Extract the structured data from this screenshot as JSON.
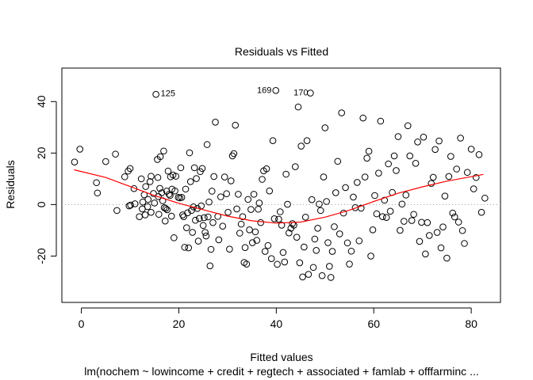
{
  "chart_data": {
    "type": "scatter",
    "title": "Residuals vs Fitted",
    "xlabel": "Fitted values",
    "ylabel": "Residuals",
    "subtitle": "lm(nochem ~ lowincome + credit + regtech + associated + famlab + offfarminc ...",
    "xlim": [
      -4,
      86
    ],
    "ylim": [
      -38,
      53
    ],
    "x_ticks": [
      0,
      20,
      40,
      60,
      80
    ],
    "y_ticks": [
      -20,
      0,
      20,
      40
    ],
    "x_tick_labels": [
      "0",
      "20",
      "40",
      "60",
      "80"
    ],
    "y_tick_labels": [
      "-20",
      "0",
      "20",
      "40"
    ],
    "reference_line_y": 0,
    "colors": {
      "points": "#000000",
      "smooth": "#ff0000",
      "reference": "#9a9a9a"
    },
    "labeled_points": [
      {
        "label": "125",
        "x": 15.3,
        "y": 43.0,
        "side": "right"
      },
      {
        "label": "169",
        "x": 40.0,
        "y": 44.3,
        "side": "left"
      },
      {
        "label": "170",
        "x": 47.5,
        "y": 43.3,
        "side": "left"
      }
    ],
    "smooth_line": [
      [
        -1.5,
        13.5
      ],
      [
        5,
        10.5
      ],
      [
        10,
        7
      ],
      [
        15,
        3.5
      ],
      [
        20,
        0.5
      ],
      [
        25,
        -2
      ],
      [
        30,
        -4.5
      ],
      [
        35,
        -6.3
      ],
      [
        40,
        -7.2
      ],
      [
        45,
        -6.8
      ],
      [
        50,
        -4.9
      ],
      [
        55,
        -2.2
      ],
      [
        60,
        1.2
      ],
      [
        65,
        4.4
      ],
      [
        70,
        6.9
      ],
      [
        75,
        9.1
      ],
      [
        82.5,
        11.7
      ]
    ],
    "points": [
      [
        -1.4,
        16.5
      ],
      [
        -0.3,
        21.5
      ],
      [
        3.1,
        8.5
      ],
      [
        3.3,
        4.5
      ],
      [
        5.0,
        16.7
      ],
      [
        7.0,
        19.6
      ],
      [
        7.3,
        -2.3
      ],
      [
        8.9,
        10.8
      ],
      [
        9.6,
        13.0
      ],
      [
        9.8,
        -0.5
      ],
      [
        10.0,
        14.0
      ],
      [
        10.1,
        -0.2
      ],
      [
        10.8,
        6.2
      ],
      [
        11.0,
        0.3
      ],
      [
        11.9,
        -4.7
      ],
      [
        12.3,
        10.0
      ],
      [
        12.5,
        -1.7
      ],
      [
        12.6,
        1.0
      ],
      [
        12.9,
        3.8
      ],
      [
        13.1,
        -4.0
      ],
      [
        13.2,
        7.0
      ],
      [
        13.6,
        -0.8
      ],
      [
        13.7,
        2.0
      ],
      [
        14.1,
        8.9
      ],
      [
        14.3,
        11.0
      ],
      [
        14.3,
        -3.0
      ],
      [
        14.8,
        4.3
      ],
      [
        15.0,
        0.6
      ],
      [
        15.3,
        42.8
      ],
      [
        15.6,
        17.5
      ],
      [
        15.7,
        10.5
      ],
      [
        15.8,
        3.1
      ],
      [
        15.9,
        -3.8
      ],
      [
        16.1,
        6.3
      ],
      [
        16.2,
        18.6
      ],
      [
        16.5,
        4.6
      ],
      [
        16.7,
        1.5
      ],
      [
        16.9,
        20.8
      ],
      [
        17.0,
        -1.2
      ],
      [
        17.2,
        -6.4
      ],
      [
        17.3,
        -1.5
      ],
      [
        17.5,
        5.2
      ],
      [
        17.6,
        -2.0
      ],
      [
        17.8,
        13.0
      ],
      [
        18.0,
        4.0
      ],
      [
        18.2,
        3.5
      ],
      [
        18.3,
        10.8
      ],
      [
        18.5,
        -4.5
      ],
      [
        18.6,
        6.0
      ],
      [
        18.8,
        11.5
      ],
      [
        19.0,
        -12.9
      ],
      [
        19.2,
        5.3
      ],
      [
        19.4,
        11.0
      ],
      [
        19.9,
        2.8
      ],
      [
        20.2,
        2.6
      ],
      [
        20.4,
        14.3
      ],
      [
        20.6,
        2.8
      ],
      [
        20.8,
        -4.0
      ],
      [
        21.0,
        -4.7
      ],
      [
        21.2,
        -16.6
      ],
      [
        21.4,
        6.0
      ],
      [
        21.6,
        -9.0
      ],
      [
        21.8,
        -3.2
      ],
      [
        22.0,
        -16.8
      ],
      [
        22.2,
        20.1
      ],
      [
        22.4,
        8.9
      ],
      [
        22.6,
        -2.3
      ],
      [
        22.8,
        -10.8
      ],
      [
        23.0,
        -0.9
      ],
      [
        23.2,
        14.3
      ],
      [
        23.4,
        -6.1
      ],
      [
        23.6,
        10.1
      ],
      [
        23.8,
        -1.5
      ],
      [
        24.0,
        -14.2
      ],
      [
        24.2,
        -5.4
      ],
      [
        24.4,
        12.8
      ],
      [
        24.6,
        -0.5
      ],
      [
        24.8,
        14.0
      ],
      [
        25.0,
        -8.1
      ],
      [
        25.2,
        -5.1
      ],
      [
        25.4,
        -10.8
      ],
      [
        25.6,
        -12.2
      ],
      [
        25.8,
        23.3
      ],
      [
        26.0,
        -4.8
      ],
      [
        26.2,
        1.0
      ],
      [
        26.4,
        -23.8
      ],
      [
        26.6,
        -17.4
      ],
      [
        26.8,
        5.2
      ],
      [
        27.0,
        -7.0
      ],
      [
        27.2,
        10.9
      ],
      [
        27.5,
        32.0
      ],
      [
        28.0,
        -4.6
      ],
      [
        28.2,
        -13.7
      ],
      [
        28.6,
        3.0
      ],
      [
        29.0,
        -8.4
      ],
      [
        29.4,
        10.7
      ],
      [
        29.8,
        4.2
      ],
      [
        30.1,
        -3.0
      ],
      [
        30.4,
        -17.3
      ],
      [
        30.7,
        9.2
      ],
      [
        31.0,
        18.9
      ],
      [
        31.3,
        19.8
      ],
      [
        31.6,
        30.8
      ],
      [
        31.9,
        -1.7
      ],
      [
        32.2,
        4.0
      ],
      [
        32.5,
        -11.1
      ],
      [
        32.8,
        -7.6
      ],
      [
        33.1,
        -4.7
      ],
      [
        33.4,
        -22.5
      ],
      [
        33.6,
        -16.7
      ],
      [
        33.9,
        -23.1
      ],
      [
        34.2,
        2.0
      ],
      [
        34.5,
        -9.8
      ],
      [
        34.8,
        -1.9
      ],
      [
        35.1,
        -14.8
      ],
      [
        35.4,
        4.0
      ],
      [
        35.7,
        -10.6
      ],
      [
        36.0,
        -13.9
      ],
      [
        36.3,
        -1.8
      ],
      [
        36.5,
        0.6
      ],
      [
        36.8,
        -7.0
      ],
      [
        37.1,
        9.8
      ],
      [
        37.4,
        13.1
      ],
      [
        37.7,
        -18.2
      ],
      [
        38.0,
        13.9
      ],
      [
        38.3,
        -15.9
      ],
      [
        38.6,
        5.3
      ],
      [
        39.0,
        -21.0
      ],
      [
        39.3,
        24.8
      ],
      [
        39.6,
        -5.5
      ],
      [
        39.9,
        44.3
      ],
      [
        40.2,
        -23.2
      ],
      [
        40.5,
        -5.7
      ],
      [
        40.8,
        -2.8
      ],
      [
        41.1,
        -8.0
      ],
      [
        41.4,
        -18.6
      ],
      [
        41.7,
        -22.3
      ],
      [
        42.0,
        11.8
      ],
      [
        42.3,
        0.1
      ],
      [
        42.6,
        -11.0
      ],
      [
        43.0,
        -9.2
      ],
      [
        43.3,
        -7.4
      ],
      [
        43.6,
        -8.0
      ],
      [
        43.9,
        14.7
      ],
      [
        44.2,
        -12.7
      ],
      [
        44.5,
        37.9
      ],
      [
        44.8,
        -22.6
      ],
      [
        45.1,
        22.7
      ],
      [
        45.4,
        -28.1
      ],
      [
        45.7,
        -16.5
      ],
      [
        46.0,
        -4.9
      ],
      [
        46.3,
        24.8
      ],
      [
        46.6,
        -27.1
      ],
      [
        47.0,
        43.3
      ],
      [
        47.3,
        1.9
      ],
      [
        47.6,
        -24.4
      ],
      [
        47.9,
        -13.4
      ],
      [
        48.2,
        -17.8
      ],
      [
        48.5,
        -9.2
      ],
      [
        48.8,
        0.2
      ],
      [
        49.1,
        -2.3
      ],
      [
        49.4,
        -27.6
      ],
      [
        49.7,
        10.7
      ],
      [
        50.0,
        29.8
      ],
      [
        50.3,
        1.2
      ],
      [
        50.6,
        -14.8
      ],
      [
        50.9,
        -24.0
      ],
      [
        51.2,
        -28.3
      ],
      [
        51.5,
        -18.2
      ],
      [
        51.9,
        -8.6
      ],
      [
        52.2,
        4.6
      ],
      [
        52.6,
        16.8
      ],
      [
        53.0,
        -11.4
      ],
      [
        53.4,
        35.6
      ],
      [
        53.8,
        -3.3
      ],
      [
        54.2,
        6.6
      ],
      [
        54.6,
        -14.9
      ],
      [
        55.0,
        -23.1
      ],
      [
        55.4,
        -18.1
      ],
      [
        55.8,
        2.9
      ],
      [
        56.2,
        -1.2
      ],
      [
        56.6,
        8.6
      ],
      [
        57.0,
        -14.1
      ],
      [
        57.4,
        -1.4
      ],
      [
        57.8,
        33.6
      ],
      [
        58.2,
        10.7
      ],
      [
        58.6,
        18.0
      ],
      [
        59.0,
        20.7
      ],
      [
        59.4,
        -20.0
      ],
      [
        59.8,
        -9.8
      ],
      [
        60.2,
        3.5
      ],
      [
        60.6,
        -3.6
      ],
      [
        61.0,
        12.2
      ],
      [
        61.4,
        32.4
      ],
      [
        61.8,
        -4.7
      ],
      [
        62.2,
        1.7
      ],
      [
        62.6,
        -5.0
      ],
      [
        63.0,
        15.8
      ],
      [
        63.4,
        -2.6
      ],
      [
        63.8,
        4.7
      ],
      [
        64.2,
        18.9
      ],
      [
        64.6,
        13.2
      ],
      [
        65.0,
        26.4
      ],
      [
        65.4,
        -10.0
      ],
      [
        65.8,
        0.2
      ],
      [
        66.2,
        -6.5
      ],
      [
        66.6,
        3.7
      ],
      [
        67.0,
        30.6
      ],
      [
        67.4,
        18.9
      ],
      [
        67.8,
        -6.2
      ],
      [
        68.2,
        -3.8
      ],
      [
        68.6,
        16.0
      ],
      [
        69.0,
        24.3
      ],
      [
        69.4,
        -14.3
      ],
      [
        69.8,
        -6.9
      ],
      [
        70.2,
        26.2
      ],
      [
        70.6,
        -19.2
      ],
      [
        71.0,
        -7.0
      ],
      [
        71.4,
        -12.0
      ],
      [
        71.8,
        8.2
      ],
      [
        72.2,
        10.6
      ],
      [
        72.6,
        21.4
      ],
      [
        73.0,
        -10.8
      ],
      [
        73.4,
        24.7
      ],
      [
        73.8,
        -16.8
      ],
      [
        74.2,
        -8.7
      ],
      [
        74.6,
        3.3
      ],
      [
        75.0,
        -20.8
      ],
      [
        75.4,
        10.9
      ],
      [
        75.8,
        18.7
      ],
      [
        76.2,
        -3.3
      ],
      [
        76.6,
        -4.8
      ],
      [
        77.0,
        13.8
      ],
      [
        77.4,
        -6.8
      ],
      [
        77.8,
        25.8
      ],
      [
        78.2,
        -10.1
      ],
      [
        78.6,
        -15.1
      ],
      [
        79.2,
        12.5
      ],
      [
        80.0,
        21.5
      ],
      [
        80.5,
        6.1
      ],
      [
        81.0,
        10.5
      ],
      [
        81.6,
        19.4
      ],
      [
        82.1,
        -3.0
      ],
      [
        82.8,
        2.5
      ]
    ]
  }
}
